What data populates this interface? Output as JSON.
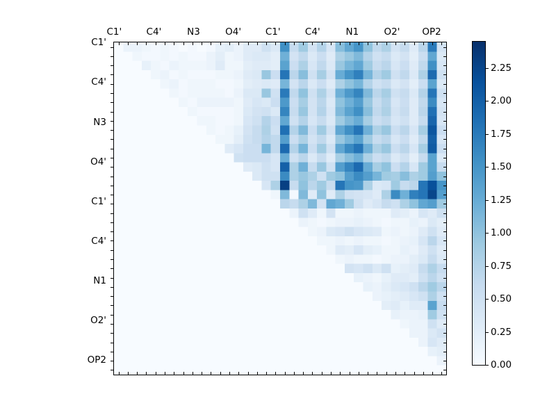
{
  "figure": {
    "background": "#ffffff"
  },
  "chart_data": {
    "type": "heatmap",
    "title": "",
    "colormap": "Blues",
    "colormap_stops": [
      "#f7fbff",
      "#deebf7",
      "#c6dbef",
      "#9ecae1",
      "#6baed6",
      "#4292c6",
      "#2171b5",
      "#08519c",
      "#08306b"
    ],
    "vmin": 0,
    "vmax": 2.45,
    "n_cells": 36,
    "grid": "off",
    "x_tick_labels": [
      {
        "text": "C1'",
        "cell": -0.4
      },
      {
        "text": "C4'",
        "cell": 3.9
      },
      {
        "text": "N3",
        "cell": 8.2
      },
      {
        "text": "O4'",
        "cell": 12.5
      },
      {
        "text": "C1'",
        "cell": 16.8
      },
      {
        "text": "C4'",
        "cell": 21.1
      },
      {
        "text": "N1",
        "cell": 25.4
      },
      {
        "text": "O2'",
        "cell": 29.7
      },
      {
        "text": "OP2",
        "cell": 34.0
      }
    ],
    "y_tick_labels": [
      {
        "text": "C1'",
        "cell": -0.4
      },
      {
        "text": "C4'",
        "cell": 3.9
      },
      {
        "text": "N3",
        "cell": 8.2
      },
      {
        "text": "O4'",
        "cell": 12.5
      },
      {
        "text": "C1'",
        "cell": 16.8
      },
      {
        "text": "C4'",
        "cell": 21.1
      },
      {
        "text": "N1",
        "cell": 25.4
      },
      {
        "text": "O2'",
        "cell": 29.7
      },
      {
        "text": "OP2",
        "cell": 34.0
      }
    ],
    "colorbar": {
      "tick_values": [
        0,
        0.25,
        0.5,
        0.75,
        1.0,
        1.25,
        1.5,
        1.75,
        2.0,
        2.25
      ],
      "tick_labels": [
        "0.00",
        "0.25",
        "0.50",
        "0.75",
        "1.00",
        "1.25",
        "1.50",
        "1.75",
        "2.00",
        "2.25"
      ]
    },
    "matrix": [
      [
        0,
        0.15,
        0.15,
        0.1,
        0.05,
        0.1,
        0.05,
        0,
        0.05,
        0,
        0.05,
        0.2,
        0.25,
        0.15,
        0.3,
        0.3,
        0.5,
        0.35,
        1.55,
        0.6,
        0.9,
        0.45,
        0.75,
        0.4,
        1.05,
        1.3,
        1.5,
        1.0,
        0.65,
        0.8,
        0.45,
        0.6,
        0.3,
        0.7,
        1.75,
        0.45
      ],
      [
        0,
        0,
        0.1,
        0.05,
        0.05,
        0.1,
        0.05,
        0.1,
        0.05,
        0.05,
        0.15,
        0.25,
        0.1,
        0.15,
        0.3,
        0.35,
        0.35,
        0.25,
        1.2,
        0.45,
        0.65,
        0.35,
        0.55,
        0.3,
        0.8,
        0.95,
        1.1,
        0.75,
        0.5,
        0.6,
        0.35,
        0.45,
        0.25,
        0.55,
        1.3,
        0.35
      ],
      [
        0,
        0,
        0,
        0.2,
        0.1,
        0.05,
        0.15,
        0.1,
        0.1,
        0.1,
        0.15,
        0.3,
        0.1,
        0.1,
        0.25,
        0.3,
        0.3,
        0.25,
        1.35,
        0.55,
        0.8,
        0.4,
        0.65,
        0.35,
        0.95,
        1.15,
        1.3,
        0.9,
        0.6,
        0.7,
        0.4,
        0.55,
        0.3,
        0.65,
        1.55,
        0.4
      ],
      [
        0,
        0,
        0,
        0,
        0.1,
        0.15,
        0.05,
        0.1,
        0.05,
        0.05,
        0.05,
        0.1,
        0.1,
        0.15,
        0.3,
        0.35,
        0.95,
        0.55,
        1.8,
        0.7,
        1.05,
        0.5,
        0.85,
        0.45,
        1.25,
        1.5,
        1.7,
        1.15,
        0.75,
        0.9,
        0.5,
        0.65,
        0.35,
        0.8,
        1.9,
        0.5
      ],
      [
        0,
        0,
        0,
        0,
        0,
        0.1,
        0.15,
        0.05,
        0.1,
        0.1,
        0.1,
        0.05,
        0.05,
        0.1,
        0.25,
        0.3,
        0.35,
        0.3,
        1.15,
        0.45,
        0.7,
        0.35,
        0.55,
        0.3,
        0.8,
        1.0,
        1.15,
        0.75,
        0.5,
        0.6,
        0.35,
        0.45,
        0.25,
        0.55,
        1.35,
        0.35
      ],
      [
        0,
        0,
        0,
        0,
        0,
        0,
        0.1,
        0.05,
        0.1,
        0.1,
        0.1,
        0.1,
        0.05,
        0.15,
        0.35,
        0.35,
        0.95,
        0.5,
        1.75,
        0.65,
        1.0,
        0.5,
        0.8,
        0.45,
        1.2,
        1.45,
        1.65,
        1.1,
        0.7,
        0.85,
        0.5,
        0.6,
        0.35,
        0.75,
        1.8,
        0.5
      ],
      [
        0,
        0,
        0,
        0,
        0,
        0,
        0,
        0.1,
        0.05,
        0.15,
        0.15,
        0.15,
        0.15,
        0.1,
        0.3,
        0.4,
        0.35,
        0.55,
        1.45,
        0.55,
        0.85,
        0.45,
        0.7,
        0.35,
        1.0,
        1.2,
        1.4,
        0.95,
        0.6,
        0.75,
        0.4,
        0.55,
        0.3,
        0.65,
        1.6,
        0.4
      ],
      [
        0,
        0,
        0,
        0,
        0,
        0,
        0,
        0,
        0.1,
        0.05,
        0.05,
        0.05,
        0.05,
        0.1,
        0.35,
        0.45,
        0.5,
        0.35,
        1.65,
        0.6,
        0.95,
        0.45,
        0.75,
        0.4,
        1.1,
        1.35,
        1.55,
        1.05,
        0.65,
        0.8,
        0.45,
        0.6,
        0.3,
        0.7,
        1.85,
        0.45
      ],
      [
        0,
        0,
        0,
        0,
        0,
        0,
        0,
        0,
        0,
        0.1,
        0.1,
        0.05,
        0.05,
        0.1,
        0.4,
        0.5,
        0.75,
        0.55,
        1.3,
        0.5,
        0.75,
        0.4,
        0.6,
        0.35,
        0.9,
        1.1,
        1.25,
        0.85,
        0.55,
        0.65,
        0.4,
        0.5,
        0.3,
        0.6,
        1.95,
        0.4
      ],
      [
        0,
        0,
        0,
        0,
        0,
        0,
        0,
        0,
        0,
        0,
        0.1,
        0.05,
        0.1,
        0.2,
        0.45,
        0.6,
        0.8,
        0.5,
        1.85,
        0.75,
        1.1,
        0.55,
        0.9,
        0.5,
        1.3,
        1.55,
        1.8,
        1.2,
        0.8,
        0.95,
        0.55,
        0.7,
        0.4,
        0.85,
        2.1,
        0.55
      ],
      [
        0,
        0,
        0,
        0,
        0,
        0,
        0,
        0,
        0,
        0,
        0,
        0.1,
        0.1,
        0.25,
        0.5,
        0.6,
        0.75,
        0.65,
        1.4,
        0.55,
        0.8,
        0.45,
        0.65,
        0.35,
        0.95,
        1.15,
        1.35,
        0.9,
        0.6,
        0.7,
        0.4,
        0.55,
        0.3,
        0.65,
        2.0,
        0.4
      ],
      [
        0,
        0,
        0,
        0,
        0,
        0,
        0,
        0,
        0,
        0,
        0,
        0,
        0.3,
        0.4,
        0.55,
        0.55,
        1.15,
        0.65,
        1.9,
        0.75,
        1.15,
        0.55,
        0.9,
        0.5,
        1.3,
        1.6,
        1.8,
        1.2,
        0.8,
        0.95,
        0.55,
        0.7,
        0.4,
        0.85,
        2.05,
        0.55
      ],
      [
        0,
        0,
        0,
        0,
        0,
        0,
        0,
        0,
        0,
        0,
        0,
        0,
        0,
        0.5,
        0.55,
        0.55,
        0.55,
        0.4,
        1.25,
        0.5,
        0.7,
        0.35,
        0.6,
        0.3,
        0.85,
        1.05,
        1.2,
        0.8,
        0.55,
        0.65,
        0.35,
        0.5,
        0.25,
        0.6,
        1.35,
        0.35
      ],
      [
        0,
        0,
        0,
        0,
        0,
        0,
        0,
        0,
        0,
        0,
        0,
        0,
        0,
        0,
        0.3,
        0.35,
        0.5,
        0.4,
        2.0,
        0.8,
        1.2,
        0.6,
        0.95,
        0.5,
        1.4,
        1.65,
        1.9,
        1.25,
        0.85,
        1.0,
        0.55,
        0.75,
        0.4,
        0.9,
        1.35,
        0.6
      ],
      [
        0,
        0,
        0,
        0,
        0,
        0,
        0,
        0,
        0,
        0,
        0,
        0,
        0,
        0,
        0,
        0.35,
        0.5,
        0.5,
        1.6,
        0.8,
        0.95,
        0.8,
        0.5,
        0.9,
        1.0,
        1.4,
        1.6,
        1.4,
        1.15,
        0.9,
        0.85,
        1.05,
        0.8,
        0.9,
        1.4,
        1.0
      ],
      [
        0,
        0,
        0,
        0,
        0,
        0,
        0,
        0,
        0,
        0,
        0,
        0,
        0,
        0,
        0,
        0,
        0.4,
        0.8,
        2.3,
        0.6,
        1.0,
        0.7,
        0.9,
        0.6,
        1.8,
        1.5,
        1.45,
        0.8,
        0.35,
        0.4,
        0.9,
        0.6,
        0.7,
        1.8,
        2.15,
        1.5
      ],
      [
        0,
        0,
        0,
        0,
        0,
        0,
        0,
        0,
        0,
        0,
        0,
        0,
        0,
        0,
        0,
        0,
        0,
        0.1,
        1.1,
        0.05,
        1.1,
        0.3,
        1.0,
        0.3,
        0.8,
        0.5,
        0.45,
        0.4,
        0.3,
        0.8,
        1.6,
        1.2,
        1.7,
        1.8,
        2.25,
        1.4
      ],
      [
        0,
        0,
        0,
        0,
        0,
        0,
        0,
        0,
        0,
        0,
        0,
        0,
        0,
        0,
        0,
        0,
        0,
        0,
        0.7,
        0.6,
        0.8,
        1.1,
        0.45,
        1.3,
        1.2,
        0.9,
        0.5,
        0.3,
        0.4,
        0.6,
        0.5,
        0.8,
        1.0,
        1.3,
        1.4,
        0.9
      ],
      [
        0,
        0,
        0,
        0,
        0,
        0,
        0,
        0,
        0,
        0,
        0,
        0,
        0,
        0,
        0,
        0,
        0,
        0,
        0,
        0.15,
        0.5,
        0.3,
        0.1,
        0.45,
        0.1,
        0.1,
        0.15,
        0.1,
        0.1,
        0.1,
        0.3,
        0.25,
        0.15,
        0.4,
        0.3,
        0.5
      ],
      [
        0,
        0,
        0,
        0,
        0,
        0,
        0,
        0,
        0,
        0,
        0,
        0,
        0,
        0,
        0,
        0,
        0,
        0,
        0,
        0,
        0.15,
        0.1,
        0.05,
        0.1,
        0.15,
        0.15,
        0.2,
        0.15,
        0.1,
        0.05,
        0.1,
        0.1,
        0.2,
        0.15,
        0.35,
        0.25
      ],
      [
        0,
        0,
        0,
        0,
        0,
        0,
        0,
        0,
        0,
        0,
        0,
        0,
        0,
        0,
        0,
        0,
        0,
        0,
        0,
        0,
        0,
        0.1,
        0.15,
        0.35,
        0.4,
        0.5,
        0.4,
        0.35,
        0.3,
        0.1,
        0.15,
        0.1,
        0.15,
        0.3,
        0.5,
        0.3
      ],
      [
        0,
        0,
        0,
        0,
        0,
        0,
        0,
        0,
        0,
        0,
        0,
        0,
        0,
        0,
        0,
        0,
        0,
        0,
        0,
        0,
        0,
        0,
        0.1,
        0.1,
        0.15,
        0.1,
        0.15,
        0.1,
        0.1,
        0.05,
        0.1,
        0.15,
        0.2,
        0.4,
        0.7,
        0.4
      ],
      [
        0,
        0,
        0,
        0,
        0,
        0,
        0,
        0,
        0,
        0,
        0,
        0,
        0,
        0,
        0,
        0,
        0,
        0,
        0,
        0,
        0,
        0,
        0,
        0.1,
        0.3,
        0.25,
        0.4,
        0.25,
        0.2,
        0.1,
        0.1,
        0.2,
        0.15,
        0.3,
        0.5,
        0.3
      ],
      [
        0,
        0,
        0,
        0,
        0,
        0,
        0,
        0,
        0,
        0,
        0,
        0,
        0,
        0,
        0,
        0,
        0,
        0,
        0,
        0,
        0,
        0,
        0,
        0,
        0.1,
        0.15,
        0.1,
        0.1,
        0.05,
        0.1,
        0.15,
        0.15,
        0.25,
        0.35,
        0.6,
        0.35
      ],
      [
        0,
        0,
        0,
        0,
        0,
        0,
        0,
        0,
        0,
        0,
        0,
        0,
        0,
        0,
        0,
        0,
        0,
        0,
        0,
        0,
        0,
        0,
        0,
        0,
        0,
        0.45,
        0.4,
        0.5,
        0.35,
        0.5,
        0.2,
        0.25,
        0.3,
        0.6,
        0.8,
        0.6
      ],
      [
        0,
        0,
        0,
        0,
        0,
        0,
        0,
        0,
        0,
        0,
        0,
        0,
        0,
        0,
        0,
        0,
        0,
        0,
        0,
        0,
        0,
        0,
        0,
        0,
        0,
        0,
        0.2,
        0.15,
        0.1,
        0.2,
        0.3,
        0.3,
        0.25,
        0.5,
        0.7,
        0.5
      ],
      [
        0,
        0,
        0,
        0,
        0,
        0,
        0,
        0,
        0,
        0,
        0,
        0,
        0,
        0,
        0,
        0,
        0,
        0,
        0,
        0,
        0,
        0,
        0,
        0,
        0,
        0,
        0,
        0.2,
        0.15,
        0.25,
        0.35,
        0.4,
        0.5,
        0.7,
        0.9,
        0.7
      ],
      [
        0,
        0,
        0,
        0,
        0,
        0,
        0,
        0,
        0,
        0,
        0,
        0,
        0,
        0,
        0,
        0,
        0,
        0,
        0,
        0,
        0,
        0,
        0,
        0,
        0,
        0,
        0,
        0,
        0.15,
        0.2,
        0.25,
        0.3,
        0.4,
        0.5,
        0.8,
        0.5
      ],
      [
        0,
        0,
        0,
        0,
        0,
        0,
        0,
        0,
        0,
        0,
        0,
        0,
        0,
        0,
        0,
        0,
        0,
        0,
        0,
        0,
        0,
        0,
        0,
        0,
        0,
        0,
        0,
        0,
        0,
        0.25,
        0.3,
        0.2,
        0.3,
        0.3,
        1.35,
        0.6
      ],
      [
        0,
        0,
        0,
        0,
        0,
        0,
        0,
        0,
        0,
        0,
        0,
        0,
        0,
        0,
        0,
        0,
        0,
        0,
        0,
        0,
        0,
        0,
        0,
        0,
        0,
        0,
        0,
        0,
        0,
        0,
        0.2,
        0.15,
        0.15,
        0.2,
        0.9,
        0.5
      ],
      [
        0,
        0,
        0,
        0,
        0,
        0,
        0,
        0,
        0,
        0,
        0,
        0,
        0,
        0,
        0,
        0,
        0,
        0,
        0,
        0,
        0,
        0,
        0,
        0,
        0,
        0,
        0,
        0,
        0,
        0,
        0,
        0.1,
        0.15,
        0.15,
        0.5,
        0.3
      ],
      [
        0,
        0,
        0,
        0,
        0,
        0,
        0,
        0,
        0,
        0,
        0,
        0,
        0,
        0,
        0,
        0,
        0,
        0,
        0,
        0,
        0,
        0,
        0,
        0,
        0,
        0,
        0,
        0,
        0,
        0,
        0,
        0,
        0.15,
        0.15,
        0.35,
        0.45
      ],
      [
        0,
        0,
        0,
        0,
        0,
        0,
        0,
        0,
        0,
        0,
        0,
        0,
        0,
        0,
        0,
        0,
        0,
        0,
        0,
        0,
        0,
        0,
        0,
        0,
        0,
        0,
        0,
        0,
        0,
        0,
        0,
        0,
        0,
        0.15,
        0.4,
        0.3
      ],
      [
        0,
        0,
        0,
        0,
        0,
        0,
        0,
        0,
        0,
        0,
        0,
        0,
        0,
        0,
        0,
        0,
        0,
        0,
        0,
        0,
        0,
        0,
        0,
        0,
        0,
        0,
        0,
        0,
        0,
        0,
        0,
        0,
        0,
        0,
        0.2,
        0.25
      ],
      [
        0,
        0,
        0,
        0,
        0,
        0,
        0,
        0,
        0,
        0,
        0,
        0,
        0,
        0,
        0,
        0,
        0,
        0,
        0,
        0,
        0,
        0,
        0,
        0,
        0,
        0,
        0,
        0,
        0,
        0,
        0,
        0,
        0,
        0,
        0,
        0.15
      ],
      [
        0,
        0,
        0,
        0,
        0,
        0,
        0,
        0,
        0,
        0,
        0,
        0,
        0,
        0,
        0,
        0,
        0,
        0,
        0,
        0,
        0,
        0,
        0,
        0,
        0,
        0,
        0,
        0,
        0,
        0,
        0,
        0,
        0,
        0,
        0,
        0
      ]
    ]
  }
}
